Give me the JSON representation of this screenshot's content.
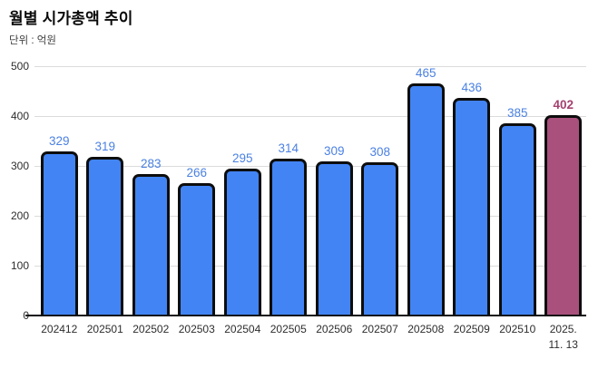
{
  "header": {
    "title": "월별 시가총액 추이",
    "subtitle": "단위 : 억원"
  },
  "colors": {
    "bar_fill": "#4284f4",
    "bar_border": "#0d0d0d",
    "highlight_fill": "#a9517c",
    "value_label": "#4b81e2",
    "highlight_value_label": "#a4406f",
    "gridline": "#dbdbdb",
    "axis_line": "#141414",
    "axis_label": "#2d2d2d"
  },
  "chart_data": {
    "type": "bar",
    "title": "월별 시가총액 추이",
    "unit_label": "단위 : 억원",
    "categories": [
      "202412",
      "202501",
      "202502",
      "202503",
      "202504",
      "202505",
      "202506",
      "202507",
      "202508",
      "202509",
      "202510",
      "2025. 11. 13"
    ],
    "values": [
      329,
      319,
      283,
      266,
      295,
      314,
      309,
      308,
      465,
      436,
      385,
      402
    ],
    "highlight_index": 11,
    "xlabel": "",
    "ylabel": "",
    "ylim": [
      0,
      500
    ],
    "yticks": [
      0,
      100,
      200,
      300,
      400,
      500
    ],
    "grid": true,
    "legend": false
  }
}
